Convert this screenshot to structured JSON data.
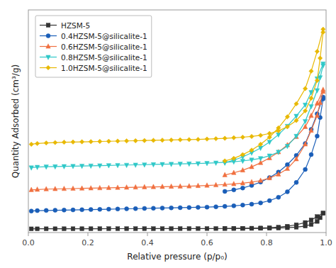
{
  "chart_data": {
    "type": "line",
    "title": "",
    "xlabel": "Relative pressure (p/p₀)",
    "ylabel": "Quantity Adsorbed (cm³/g)",
    "xlim": [
      0.0,
      1.0
    ],
    "xticks": [
      {
        "value": 0,
        "label": "0.0"
      },
      0.2,
      0.4,
      0.6,
      0.8,
      {
        "value": 1.0,
        "label": "1.0"
      }
    ],
    "ylim": [
      0,
      600
    ],
    "tick_labels": "x",
    "grid": false,
    "legend": "upper left",
    "series": [
      {
        "name": "HZSM-5",
        "color": "#333333",
        "marker": "square",
        "x": [
          0.01,
          0.03,
          0.06,
          0.09,
          0.12,
          0.15,
          0.18,
          0.21,
          0.24,
          0.27,
          0.3,
          0.33,
          0.36,
          0.39,
          0.42,
          0.45,
          0.48,
          0.51,
          0.54,
          0.57,
          0.6,
          0.63,
          0.66,
          0.69,
          0.72,
          0.75,
          0.78,
          0.81,
          0.84,
          0.87,
          0.9,
          0.93,
          0.95,
          0.97,
          0.98,
          0.99
        ],
        "values": [
          10,
          10.1,
          10.2,
          10.25,
          10.3,
          10.35,
          10.4,
          10.4,
          10.45,
          10.5,
          10.5,
          10.55,
          10.55,
          10.6,
          10.6,
          10.65,
          10.7,
          10.7,
          10.75,
          10.8,
          10.85,
          10.9,
          10.95,
          11.0,
          11.1,
          11.2,
          11.4,
          11.7,
          12.2,
          13.0,
          14.5,
          17.5,
          22.0,
          30.0,
          40.0,
          52.0
        ]
      },
      {
        "color": "#333333",
        "marker": "square",
        "x": [
          0.99,
          0.97,
          0.95,
          0.93,
          0.9,
          0.87,
          0.84,
          0.81,
          0.78,
          0.75,
          0.72,
          0.69,
          0.66
        ],
        "values": [
          52.5,
          43.0,
          34.0,
          27.0,
          21.0,
          17.0,
          14.5,
          13.0,
          12.2,
          11.7,
          11.4,
          11.2,
          11.0
        ]
      },
      {
        "name": "0.4HZSM-5@silicalite-1",
        "color": "#1a5eb8",
        "marker": "circle",
        "x": [
          0.01,
          0.03,
          0.06,
          0.09,
          0.12,
          0.15,
          0.18,
          0.21,
          0.24,
          0.27,
          0.3,
          0.33,
          0.36,
          0.39,
          0.42,
          0.45,
          0.48,
          0.51,
          0.54,
          0.57,
          0.6,
          0.63,
          0.66,
          0.69,
          0.72,
          0.75,
          0.78,
          0.81,
          0.84,
          0.87,
          0.9,
          0.93,
          0.95,
          0.97,
          0.98,
          0.99
        ],
        "values": [
          58,
          59,
          59.5,
          60,
          60.5,
          61,
          61.5,
          62,
          62.5,
          63,
          63.5,
          64,
          64.5,
          65,
          65.5,
          66,
          66.5,
          67,
          67.5,
          68,
          68.5,
          69.5,
          70.5,
          72,
          74,
          76.5,
          80,
          86,
          95,
          110,
          135,
          170,
          210,
          260,
          310,
          360
        ]
      },
      {
        "color": "#1a5eb8",
        "marker": "circle",
        "x": [
          0.99,
          0.97,
          0.95,
          0.93,
          0.9,
          0.87,
          0.84,
          0.81,
          0.78,
          0.75,
          0.72,
          0.69,
          0.66
        ],
        "values": [
          365,
          320,
          278,
          240,
          208,
          183,
          163,
          148,
          136,
          127,
          120,
          115,
          111
        ]
      },
      {
        "name": "0.6HZSM-5@silicalite-1",
        "color": "#f07040",
        "marker": "triangle-up",
        "x": [
          0.01,
          0.03,
          0.06,
          0.09,
          0.12,
          0.15,
          0.18,
          0.21,
          0.24,
          0.27,
          0.3,
          0.33,
          0.36,
          0.39,
          0.42,
          0.45,
          0.48,
          0.51,
          0.54,
          0.57,
          0.6,
          0.63,
          0.66,
          0.69,
          0.72,
          0.75,
          0.78,
          0.81,
          0.84,
          0.87,
          0.9,
          0.93,
          0.95,
          0.97,
          0.98,
          0.99
        ],
        "values": [
          115,
          116,
          117,
          117.5,
          118,
          118.5,
          119,
          119.5,
          120,
          120.5,
          121,
          121.5,
          122,
          122.5,
          123,
          123.5,
          124,
          124.5,
          125,
          126,
          127,
          128,
          129.5,
          131,
          133,
          136,
          140,
          147,
          157,
          172,
          198,
          238,
          275,
          315,
          350,
          380
        ]
      },
      {
        "color": "#f07040",
        "marker": "triangle-up",
        "x": [
          0.99,
          0.97,
          0.95,
          0.93,
          0.9,
          0.87,
          0.84,
          0.81,
          0.78,
          0.75,
          0.72,
          0.69,
          0.66
        ],
        "values": [
          385,
          348,
          315,
          285,
          258,
          236,
          217,
          201,
          188,
          177,
          168,
          161,
          155
        ]
      },
      {
        "name": "0.8HZSM-5@silicalite-1",
        "color": "#30c8c8",
        "marker": "triangle-down",
        "x": [
          0.01,
          0.03,
          0.06,
          0.09,
          0.12,
          0.15,
          0.18,
          0.21,
          0.24,
          0.27,
          0.3,
          0.33,
          0.36,
          0.39,
          0.42,
          0.45,
          0.48,
          0.51,
          0.54,
          0.57,
          0.6,
          0.63,
          0.66,
          0.69,
          0.72,
          0.75,
          0.78,
          0.81,
          0.84,
          0.87,
          0.9,
          0.93,
          0.95,
          0.97,
          0.98,
          0.99
        ],
        "values": [
          175,
          176.5,
          177.5,
          178,
          178.5,
          179,
          179.5,
          180,
          180.5,
          181,
          181.5,
          182,
          182.5,
          183,
          183.5,
          184,
          184.5,
          185,
          185.5,
          186,
          187,
          188,
          189.5,
          191,
          193,
          196,
          200,
          207,
          217,
          233,
          260,
          300,
          340,
          383,
          418,
          450
        ]
      },
      {
        "color": "#30c8c8",
        "marker": "triangle-down",
        "x": [
          0.99,
          0.97,
          0.95,
          0.93,
          0.9,
          0.87,
          0.84,
          0.81,
          0.78,
          0.75,
          0.72,
          0.69,
          0.66
        ],
        "values": [
          455,
          415,
          378,
          344,
          314,
          287,
          264,
          244,
          228,
          215,
          204,
          195,
          188
        ]
      },
      {
        "name": "1.0HZSM-5@silicalite-1",
        "color": "#e8b800",
        "marker": "diamond",
        "x": [
          0.01,
          0.03,
          0.06,
          0.09,
          0.12,
          0.15,
          0.18,
          0.21,
          0.24,
          0.27,
          0.3,
          0.33,
          0.36,
          0.39,
          0.42,
          0.45,
          0.48,
          0.51,
          0.54,
          0.57,
          0.6,
          0.63,
          0.66,
          0.69,
          0.72,
          0.75,
          0.78,
          0.81,
          0.84,
          0.87,
          0.9,
          0.93,
          0.95,
          0.97,
          0.98,
          0.99
        ],
        "values": [
          238,
          240,
          241.5,
          242.5,
          243.5,
          244,
          244.5,
          245,
          245.5,
          246,
          246.5,
          247,
          247.5,
          248,
          248.5,
          249,
          249.5,
          250,
          250.5,
          251,
          252,
          253,
          254,
          255.5,
          257,
          259,
          262,
          267,
          274,
          285,
          302,
          328,
          362,
          410,
          470,
          540
        ]
      },
      {
        "color": "#e8b800",
        "marker": "diamond",
        "x": [
          0.99,
          0.97,
          0.95,
          0.93,
          0.9,
          0.87,
          0.84,
          0.81,
          0.78,
          0.75,
          0.72,
          0.69,
          0.66
        ],
        "values": [
          548,
          488,
          435,
          388,
          347,
          312,
          282,
          257,
          238,
          222,
          210,
          200,
          193
        ]
      }
    ]
  }
}
